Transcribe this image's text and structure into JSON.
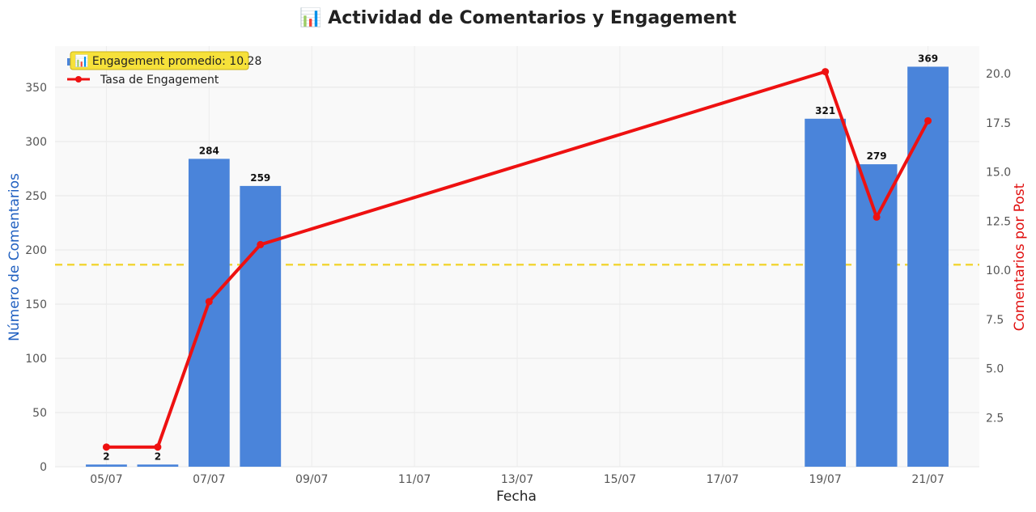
{
  "chart_data": {
    "type": "bar",
    "title": "📊 Actividad de Comentarios y Engagement",
    "xlabel": "Fecha",
    "ylabel": "Número de Comentarios",
    "ylabel_right": "Comentarios por Post",
    "x_ticks": [
      "05/07",
      "07/07",
      "09/07",
      "11/07",
      "13/07",
      "15/07",
      "17/07",
      "19/07",
      "21/07"
    ],
    "x_day_range": [
      4.0,
      22.0
    ],
    "ylim": [
      0,
      388
    ],
    "y_ticks": [
      0,
      50,
      100,
      150,
      200,
      250,
      300,
      350
    ],
    "ylim_right": [
      0,
      21.4
    ],
    "y_ticks_right": [
      2.5,
      5.0,
      7.5,
      10.0,
      12.5,
      15.0,
      17.5,
      20.0
    ],
    "grid": true,
    "legend_position": "top-left",
    "bars": {
      "name": "",
      "color": "#4a84da",
      "days": [
        5,
        6,
        7,
        8,
        19,
        20,
        21
      ],
      "values": [
        2,
        2,
        284,
        259,
        321,
        279,
        369
      ]
    },
    "line": {
      "name": "Tasa de Engagement",
      "color": "#ee1111",
      "days": [
        5,
        6,
        7,
        8,
        19,
        20,
        21
      ],
      "values": [
        1.0,
        1.0,
        8.4,
        11.3,
        20.1,
        12.7,
        17.6
      ]
    },
    "average_line": {
      "value": 10.28,
      "label": "📊 Engagement promedio: 10.28",
      "color": "#f2d63a"
    }
  }
}
